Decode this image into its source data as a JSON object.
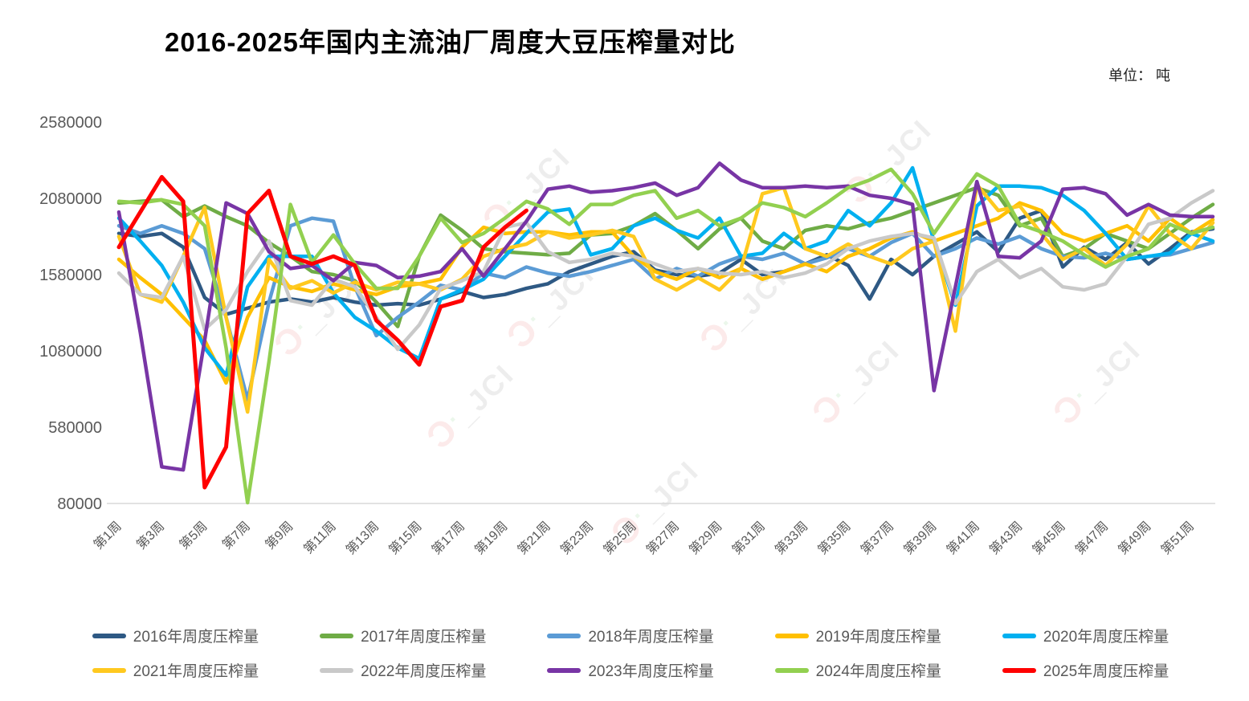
{
  "header": {
    "title": "2016-2025年国内主流油厂周度大豆压榨量对比",
    "unit_label": "单位： 吨"
  },
  "watermark_text": "JCI",
  "chart_data": {
    "type": "line",
    "title": "2016-2025年国内主流油厂周度大豆压榨量对比",
    "ylabel": "吨",
    "y_ticks": [
      2580000,
      2080000,
      1580000,
      1080000,
      580000,
      80000
    ],
    "y_range": [
      80000,
      2580000
    ],
    "grid": false,
    "legend_position": "bottom",
    "x_tick_labels": [
      "第1周",
      "第3周",
      "第5周",
      "第7周",
      "第9周",
      "第11周",
      "第13周",
      "第15周",
      "第17周",
      "第19周",
      "第21周",
      "第23周",
      "第25周",
      "第27周",
      "第29周",
      "第31周",
      "第33周",
      "第35周",
      "第37周",
      "第39周",
      "第41周",
      "第43周",
      "第45周",
      "第47周",
      "第49周",
      "第51周"
    ],
    "weeks_total": 52,
    "series": [
      {
        "name": "2016年周度压榨量",
        "color": "#2E5984",
        "values": [
          1850000,
          1830000,
          1850000,
          1760000,
          1430000,
          1320000,
          1360000,
          1400000,
          1420000,
          1400000,
          1430000,
          1400000,
          1380000,
          1390000,
          1380000,
          1420000,
          1470000,
          1430000,
          1450000,
          1490000,
          1520000,
          1600000,
          1650000,
          1700000,
          1730000,
          1610000,
          1580000,
          1570000,
          1590000,
          1680000,
          1580000,
          1600000,
          1650000,
          1710000,
          1640000,
          1420000,
          1680000,
          1580000,
          1700000,
          1780000,
          1860000,
          1730000,
          1950000,
          2000000,
          1630000,
          1760000,
          1680000,
          1790000,
          1650000,
          1750000,
          1860000,
          1880000
        ]
      },
      {
        "name": "2017年周度压榨量",
        "color": "#6FAC46",
        "values": [
          2050000,
          2060000,
          2070000,
          1960000,
          2030000,
          1960000,
          1900000,
          1790000,
          1700000,
          1600000,
          1580000,
          1540000,
          1400000,
          1240000,
          1700000,
          1970000,
          1870000,
          1750000,
          1730000,
          1720000,
          1710000,
          1720000,
          1840000,
          1850000,
          1900000,
          1980000,
          1870000,
          1750000,
          1880000,
          1950000,
          1800000,
          1750000,
          1870000,
          1900000,
          1880000,
          1920000,
          1950000,
          2000000,
          2050000,
          2100000,
          2150000,
          2100000,
          1900000,
          1950000,
          1700000,
          1750000,
          1850000,
          1800000,
          1750000,
          1850000,
          1950000,
          2040000
        ]
      },
      {
        "name": "2018年周度压榨量",
        "color": "#5B9BD5",
        "values": [
          1900000,
          1850000,
          1900000,
          1850000,
          1750000,
          1300000,
          760000,
          1400000,
          1900000,
          1950000,
          1930000,
          1500000,
          1180000,
          1300000,
          1400000,
          1510000,
          1480000,
          1590000,
          1560000,
          1630000,
          1590000,
          1570000,
          1600000,
          1640000,
          1680000,
          1550000,
          1620000,
          1570000,
          1650000,
          1700000,
          1680000,
          1720000,
          1650000,
          1690000,
          1750000,
          1700000,
          1790000,
          1850000,
          1700000,
          1750000,
          1820000,
          1780000,
          1830000,
          1750000,
          1700000,
          1690000,
          1720000,
          1680000,
          1700000,
          1710000,
          1750000,
          1790000
        ]
      },
      {
        "name": "2019年周度压榨量",
        "color": "#FFC000",
        "values": [
          1680000,
          1560000,
          1450000,
          1300000,
          1150000,
          870000,
          1300000,
          1560000,
          1500000,
          1470000,
          1520000,
          1480000,
          1450000,
          1500000,
          1520000,
          1550000,
          1760000,
          1890000,
          1850000,
          1860000,
          1860000,
          1840000,
          1860000,
          1860000,
          1700000,
          1600000,
          1550000,
          1620000,
          1560000,
          1620000,
          1550000,
          1600000,
          1650000,
          1600000,
          1700000,
          1750000,
          1820000,
          1860000,
          1800000,
          1850000,
          1900000,
          1950000,
          2050000,
          2000000,
          1850000,
          1800000,
          1850000,
          1900000,
          1800000,
          1950000,
          1850000,
          1940000
        ]
      },
      {
        "name": "2020年周度压榨量",
        "color": "#00B0F0",
        "values": [
          1950000,
          1800000,
          1640000,
          1400000,
          1100000,
          920000,
          1500000,
          1700000,
          1700000,
          1700000,
          1460000,
          1300000,
          1210000,
          1100000,
          1030000,
          1420000,
          1480000,
          1550000,
          1700000,
          1850000,
          1990000,
          2010000,
          1710000,
          1750000,
          1900000,
          1950000,
          1870000,
          1820000,
          1950000,
          1700000,
          1720000,
          1850000,
          1750000,
          1800000,
          2000000,
          1900000,
          2050000,
          2280000,
          1800000,
          1380000,
          2030000,
          2160000,
          2160000,
          2150000,
          2100000,
          2000000,
          1850000,
          1680000,
          1700000,
          1720000,
          1850000,
          1800000
        ]
      },
      {
        "name": "2021年周度压榨量",
        "color": "#FFC91F",
        "values": [
          1830000,
          1450000,
          1400000,
          1700000,
          2020000,
          1300000,
          680000,
          1680000,
          1490000,
          1540000,
          1460000,
          1530000,
          1480000,
          1530000,
          1520000,
          1480000,
          1550000,
          1700000,
          1750000,
          1780000,
          1860000,
          1820000,
          1840000,
          1870000,
          1830000,
          1550000,
          1480000,
          1560000,
          1480000,
          1620000,
          2110000,
          2150000,
          1750000,
          1700000,
          1780000,
          1700000,
          1650000,
          1750000,
          1800000,
          1210000,
          2170000,
          2000000,
          2030000,
          1850000,
          1680000,
          1750000,
          1640000,
          1780000,
          2030000,
          1850000,
          1750000,
          1920000
        ]
      },
      {
        "name": "2022年周度压榨量",
        "color": "#C9C9C9",
        "values": [
          1590000,
          1450000,
          1430000,
          1700000,
          1220000,
          1350000,
          1600000,
          1800000,
          1410000,
          1380000,
          1550000,
          1500000,
          1300000,
          1090000,
          1250000,
          1490000,
          1540000,
          1600000,
          1890000,
          1920000,
          1730000,
          1660000,
          1680000,
          1720000,
          1700000,
          1650000,
          1600000,
          1620000,
          1590000,
          1580000,
          1600000,
          1560000,
          1590000,
          1650000,
          1750000,
          1800000,
          1830000,
          1850000,
          1820000,
          1390000,
          1600000,
          1680000,
          1560000,
          1620000,
          1500000,
          1480000,
          1520000,
          1700000,
          1910000,
          1950000,
          2050000,
          2130000
        ]
      },
      {
        "name": "2023年周度压榨量",
        "color": "#7835A5",
        "values": [
          1990000,
          1200000,
          320000,
          300000,
          1150000,
          2050000,
          1980000,
          1730000,
          1620000,
          1640000,
          1540000,
          1660000,
          1640000,
          1560000,
          1570000,
          1600000,
          1750000,
          1570000,
          1750000,
          1930000,
          2140000,
          2160000,
          2120000,
          2130000,
          2150000,
          2180000,
          2100000,
          2150000,
          2310000,
          2200000,
          2150000,
          2150000,
          2160000,
          2150000,
          2160000,
          2100000,
          2080000,
          2040000,
          820000,
          1500000,
          2190000,
          1700000,
          1690000,
          1800000,
          2140000,
          2150000,
          2110000,
          1970000,
          2040000,
          1970000,
          1960000,
          1960000
        ]
      },
      {
        "name": "2024年周度压榨量",
        "color": "#92D050",
        "values": [
          2060000,
          2050000,
          2070000,
          2040000,
          1900000,
          1100000,
          85000,
          1010000,
          2040000,
          1660000,
          1840000,
          1650000,
          1490000,
          1490000,
          1700000,
          1950000,
          1790000,
          1850000,
          1950000,
          2060000,
          2010000,
          1910000,
          2040000,
          2040000,
          2100000,
          2130000,
          1950000,
          2000000,
          1900000,
          1950000,
          2050000,
          2020000,
          1960000,
          2050000,
          2150000,
          2200000,
          2270000,
          2110000,
          1850000,
          2050000,
          2240000,
          2160000,
          1910000,
          1860000,
          1800000,
          1710000,
          1630000,
          1700000,
          1750000,
          1910000,
          1850000,
          1890000
        ]
      },
      {
        "name": "2025年周度压榨量",
        "color": "#FF0000",
        "values": [
          1760000,
          1990000,
          2220000,
          2060000,
          185000,
          450000,
          1980000,
          2130000,
          1700000,
          1650000,
          1700000,
          1640000,
          1280000,
          1150000,
          990000,
          1370000,
          1410000,
          1760000,
          1890000,
          2000000
        ]
      }
    ]
  }
}
